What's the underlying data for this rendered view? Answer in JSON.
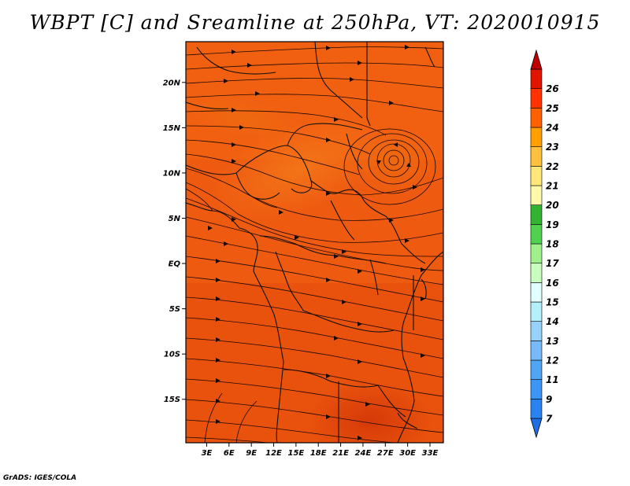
{
  "title": "WBPT [C] and Sreamline at 250hPa, VT: 2020010915",
  "footer": "GrADS: IGES/COLA",
  "map": {
    "lat_labels": [
      "20N",
      "15N",
      "10N",
      "5N",
      "EQ",
      "5S",
      "10S",
      "15S"
    ],
    "lon_labels": [
      "3E",
      "6E",
      "9E",
      "12E",
      "15E",
      "18E",
      "21E",
      "24E",
      "27E",
      "30E",
      "33E"
    ],
    "lat_range": [
      -19.8,
      24.5
    ],
    "lon_range": [
      0.2,
      34.8
    ]
  },
  "colorbar": {
    "labels": [
      "7",
      "9",
      "11",
      "12",
      "13",
      "14",
      "15",
      "16",
      "17",
      "18",
      "19",
      "20",
      "21",
      "22",
      "23",
      "24",
      "25",
      "26"
    ],
    "colors": [
      "#1e6ee6",
      "#2882f0",
      "#3c96f5",
      "#50a5f5",
      "#78b9fa",
      "#96d2fa",
      "#b4f0fa",
      "#e1ffff",
      "#c8ffbe",
      "#a0f08c",
      "#50d250",
      "#32b432",
      "#fffaaa",
      "#ffe878",
      "#ffc03c",
      "#ffa000",
      "#ff6000",
      "#ff3200",
      "#e11400",
      "#c00000"
    ]
  }
}
